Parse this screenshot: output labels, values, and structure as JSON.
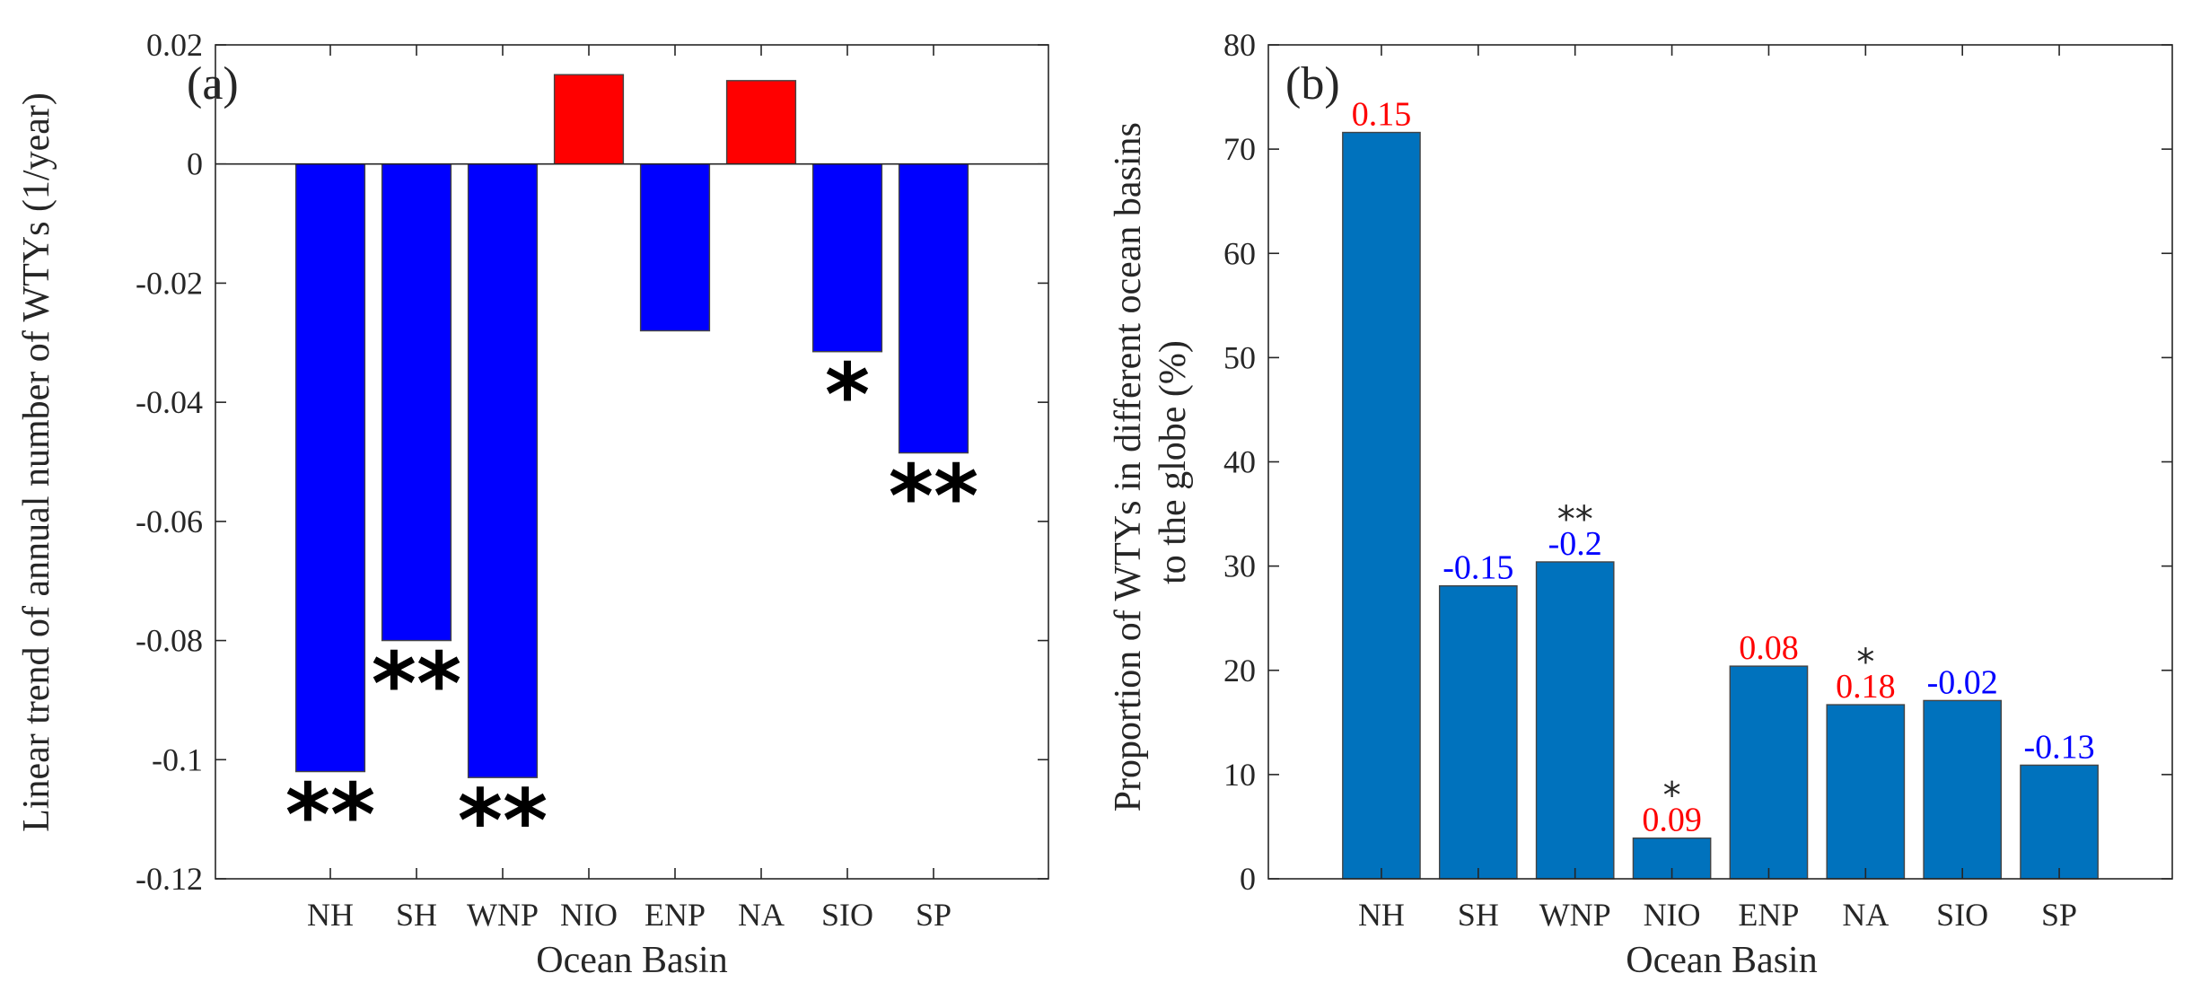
{
  "chart_data": [
    {
      "type": "bar",
      "panel_label": "(a)",
      "title": "",
      "xlabel": "Ocean Basin",
      "ylabel": "Linear trend of annual number of WTYs (1/year)",
      "categories": [
        "NH",
        "SH",
        "WNP",
        "NIO",
        "ENP",
        "NA",
        "SIO",
        "SP"
      ],
      "values": [
        -0.102,
        -0.08,
        -0.103,
        0.015,
        -0.028,
        0.014,
        -0.0315,
        -0.0485
      ],
      "significance": [
        "**",
        "**",
        "**",
        "",
        "",
        "",
        "*",
        "**"
      ],
      "ylim": [
        -0.12,
        0.02
      ],
      "yticks": [
        -0.12,
        -0.1,
        -0.08,
        -0.06,
        -0.04,
        -0.02,
        0,
        0.02
      ],
      "ytick_labels": [
        "-0.12",
        "-0.1",
        "-0.08",
        "-0.06",
        "-0.04",
        "-0.02",
        "0",
        "0.02"
      ],
      "colors": {
        "positive": "#ff0000",
        "negative": "#0000ff"
      },
      "grid": false
    },
    {
      "type": "bar",
      "panel_label": "(b)",
      "title": "",
      "xlabel": "Ocean Basin",
      "ylabel_lines": [
        "Proportion of WTYs in different ocean basins",
        "to the globe (%)"
      ],
      "categories": [
        "NH",
        "SH",
        "WNP",
        "NIO",
        "ENP",
        "NA",
        "SIO",
        "SP"
      ],
      "values": [
        71.6,
        28.1,
        30.4,
        3.9,
        20.4,
        16.7,
        17.1,
        10.9
      ],
      "bar_labels": [
        "0.15",
        "-0.15",
        "-0.2",
        "0.09",
        "0.08",
        "0.18",
        "-0.02",
        "-0.13"
      ],
      "significance": [
        "",
        "",
        "**",
        "*",
        "",
        "*",
        "",
        ""
      ],
      "ylim": [
        0,
        80
      ],
      "yticks": [
        0,
        10,
        20,
        30,
        40,
        50,
        60,
        70,
        80
      ],
      "ytick_labels": [
        "0",
        "10",
        "20",
        "30",
        "40",
        "50",
        "60",
        "70",
        "80"
      ],
      "colors": {
        "bar": "#0072bd",
        "positive_label": "#ff0000",
        "negative_label": "#0000ff"
      },
      "grid": false
    }
  ]
}
